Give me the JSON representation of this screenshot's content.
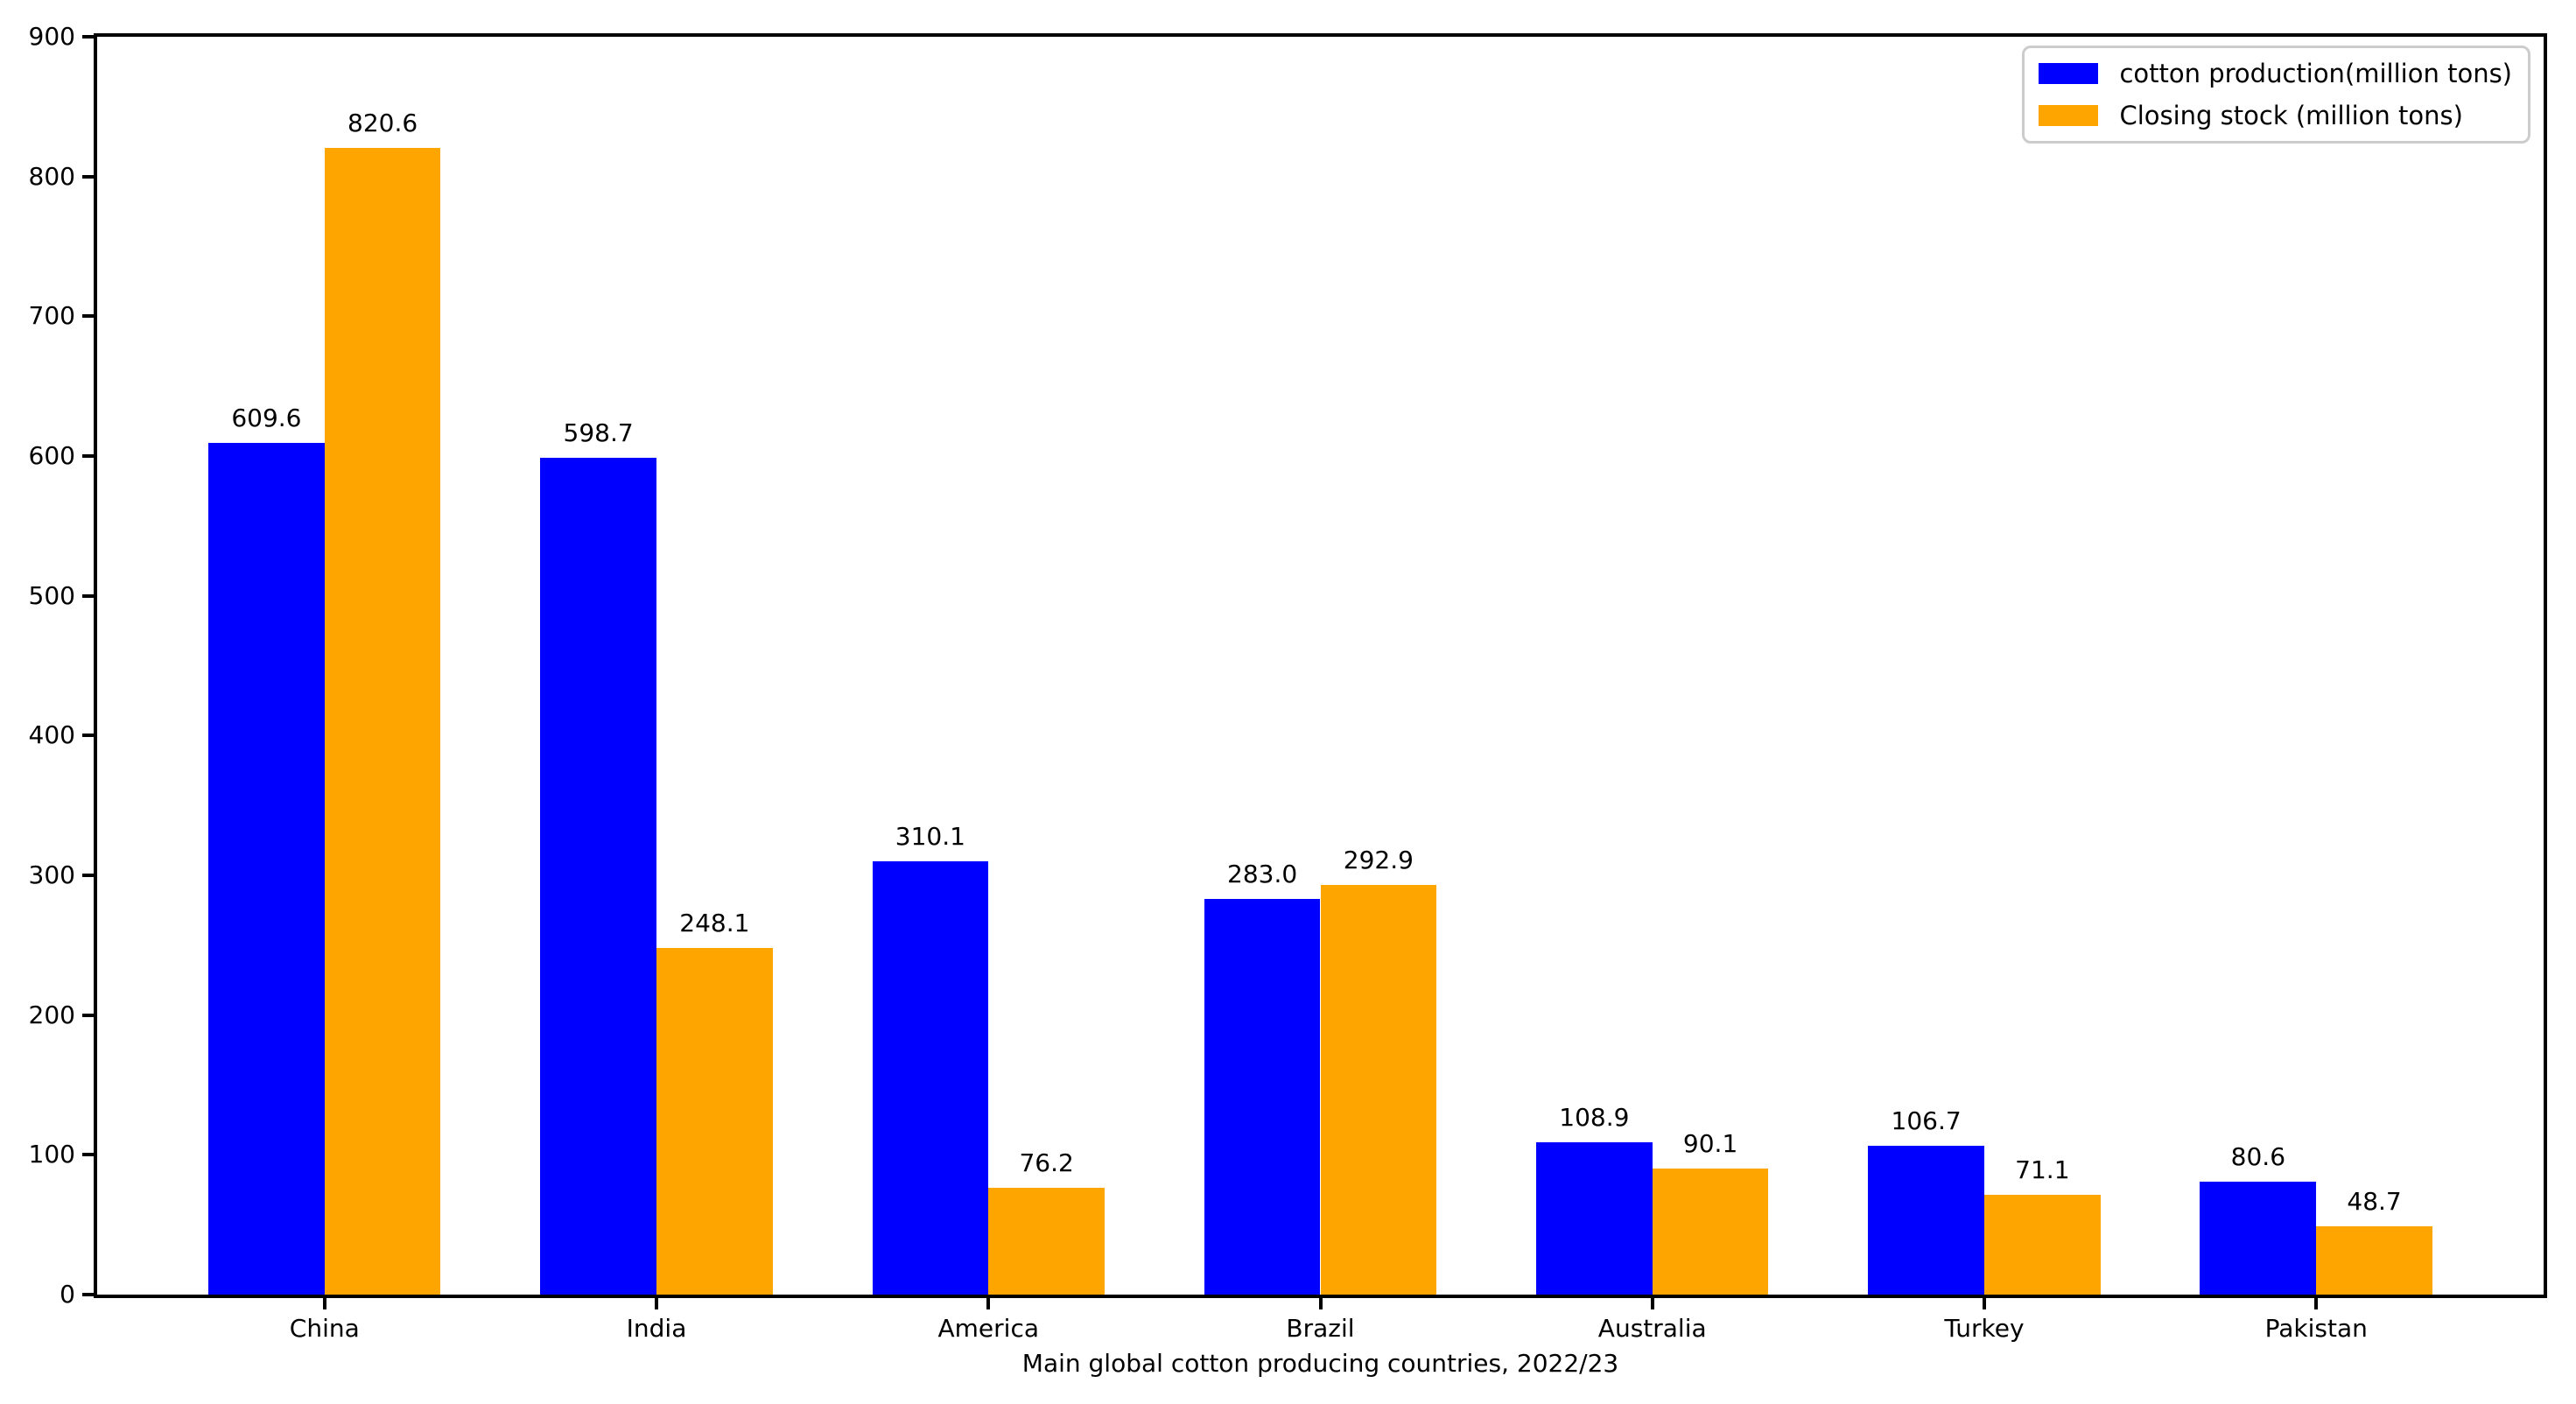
{
  "chart_data": {
    "type": "bar",
    "title": "",
    "xlabel": "Main global cotton producing countries, 2022/23",
    "ylabel": "",
    "categories": [
      "China",
      "India",
      "America",
      "Brazil",
      "Australia",
      "Turkey",
      "Pakistan"
    ],
    "series": [
      {
        "name": "cotton production(million tons)",
        "color": "#0000ff",
        "values": [
          609.6,
          598.7,
          310.1,
          283.0,
          108.9,
          106.7,
          80.6
        ]
      },
      {
        "name": "Closing stock (million tons)",
        "color": "#ffa500",
        "values": [
          820.6,
          248.1,
          76.2,
          292.9,
          90.1,
          71.1,
          48.7
        ]
      }
    ],
    "ylim": [
      0,
      900
    ],
    "yticks": [
      0,
      100,
      200,
      300,
      400,
      500,
      600,
      700,
      800,
      900
    ],
    "bar_width_fraction": 0.35,
    "value_label_decimals": 1,
    "legend_position": "upper right",
    "grid": false,
    "background_color": "#ffffff",
    "axis_color": "#000000"
  }
}
